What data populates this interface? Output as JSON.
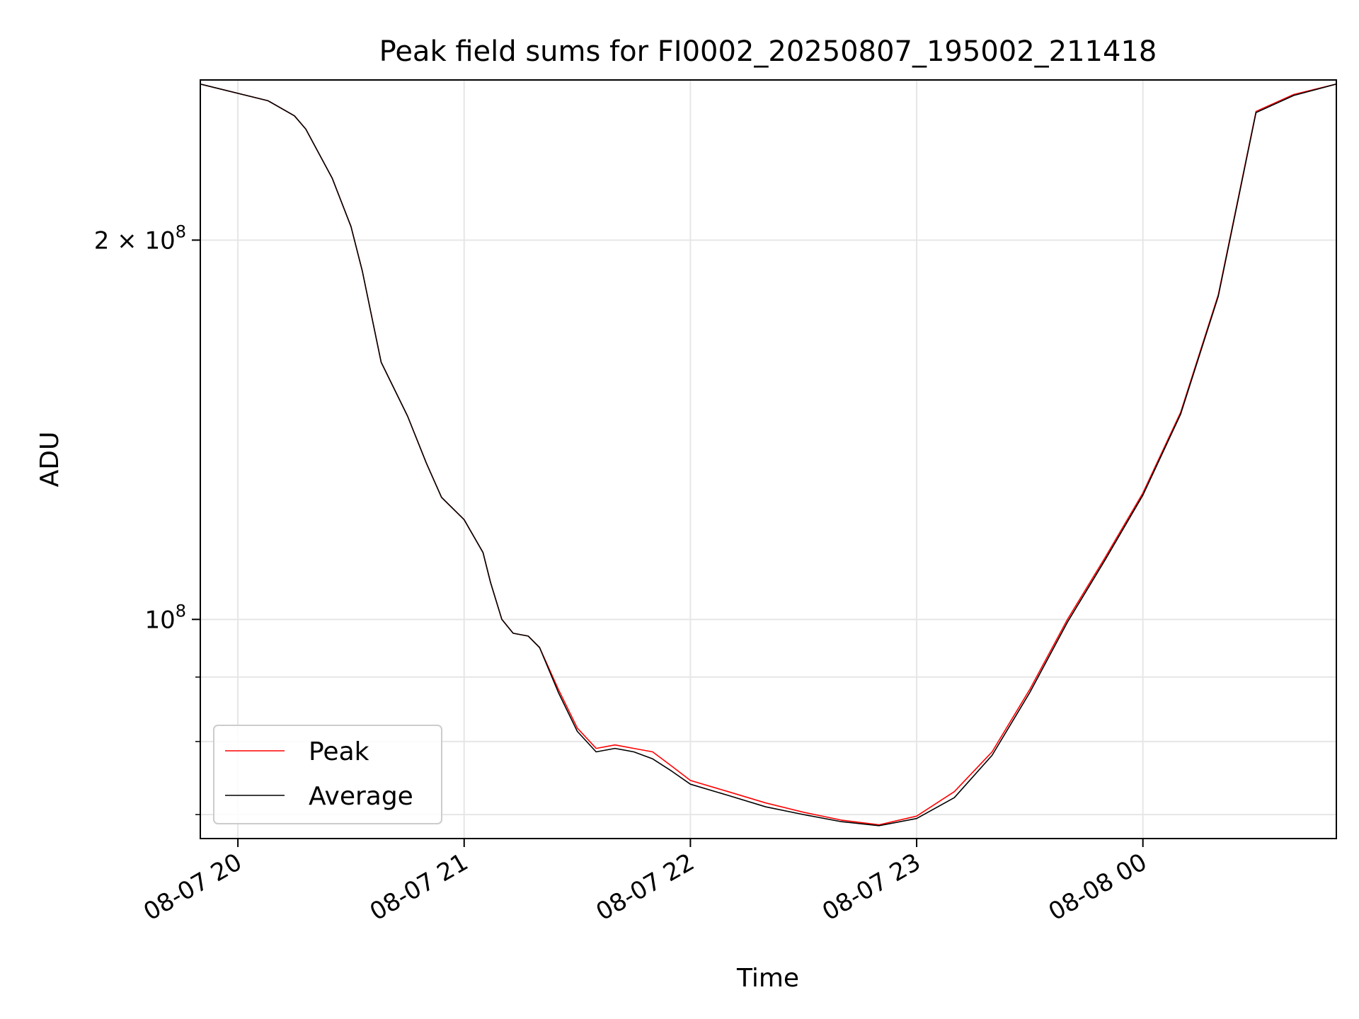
{
  "chart_data": {
    "type": "line",
    "title": "Peak field sums for FI0002_20250807_195002_211418",
    "xlabel": "Time",
    "ylabel": "ADU",
    "y_scale": "log",
    "ylim": [
      67000000,
      268000000
    ],
    "x_time_range": [
      "2025-08-07T19:50:02",
      "2025-08-08T00:51:18"
    ],
    "x_ticks": [
      {
        "time": "2025-08-07T20:00",
        "label": "08-07 20"
      },
      {
        "time": "2025-08-07T21:00",
        "label": "08-07 21"
      },
      {
        "time": "2025-08-07T22:00",
        "label": "08-07 22"
      },
      {
        "time": "2025-08-07T23:00",
        "label": "08-07 23"
      },
      {
        "time": "2025-08-08T00:00",
        "label": "08-08 00"
      }
    ],
    "y_major_ticks": [
      {
        "value": 100000000,
        "base": "10",
        "exp": "8"
      },
      {
        "value": 200000000,
        "mant": "2",
        "base": "10",
        "exp": "8"
      }
    ],
    "y_minor_ticks": [
      70000000,
      80000000,
      90000000
    ],
    "grid": true,
    "legend_position": "lower-left",
    "series": [
      {
        "name": "Peak",
        "color": "#ff0000",
        "x": [
          "2025-08-07T19:50:02",
          "2025-08-07T20:08:00",
          "2025-08-07T20:15:00",
          "2025-08-07T20:18:00",
          "2025-08-07T20:25:00",
          "2025-08-07T20:30:00",
          "2025-08-07T20:33:00",
          "2025-08-07T20:38:00",
          "2025-08-07T20:45:00",
          "2025-08-07T20:50:00",
          "2025-08-07T20:54:00",
          "2025-08-07T21:00:00",
          "2025-08-07T21:05:00",
          "2025-08-07T21:07:00",
          "2025-08-07T21:10:00",
          "2025-08-07T21:13:00",
          "2025-08-07T21:17:00",
          "2025-08-07T21:20:00",
          "2025-08-07T21:25:00",
          "2025-08-07T21:30:00",
          "2025-08-07T21:35:00",
          "2025-08-07T21:40:00",
          "2025-08-07T21:45:00",
          "2025-08-07T21:50:00",
          "2025-08-07T21:55:00",
          "2025-08-07T22:00:00",
          "2025-08-07T22:10:00",
          "2025-08-07T22:20:00",
          "2025-08-07T22:30:00",
          "2025-08-07T22:40:00",
          "2025-08-07T22:50:00",
          "2025-08-07T23:00:00",
          "2025-08-07T23:10:00",
          "2025-08-07T23:20:00",
          "2025-08-07T23:30:00",
          "2025-08-07T23:40:00",
          "2025-08-07T23:50:00",
          "2025-08-08T00:00:00",
          "2025-08-08T00:10:00",
          "2025-08-08T00:20:00",
          "2025-08-08T00:25:00",
          "2025-08-08T00:30:00",
          "2025-08-08T00:40:00",
          "2025-08-08T00:51:18"
        ],
        "values": [
          266000000,
          258000000,
          251000000,
          245000000,
          224000000,
          205000000,
          189000000,
          160000000,
          145000000,
          133000000,
          125000000,
          120000000,
          113000000,
          107000000,
          100000000,
          97500000,
          97000000,
          95000000,
          88000000,
          82000000,
          79000000,
          79500000,
          79000000,
          78500000,
          76500000,
          74500000,
          73000000,
          71500000,
          70300000,
          69300000,
          68700000,
          69800000,
          73000000,
          78500000,
          88000000,
          100000000,
          112000000,
          126000000,
          146000000,
          181000000,
          214000000,
          253000000,
          261000000,
          266000000
        ]
      },
      {
        "name": "Average",
        "color": "#000000",
        "x": [
          "2025-08-07T19:50:02",
          "2025-08-07T20:08:00",
          "2025-08-07T20:15:00",
          "2025-08-07T20:18:00",
          "2025-08-07T20:25:00",
          "2025-08-07T20:30:00",
          "2025-08-07T20:33:00",
          "2025-08-07T20:38:00",
          "2025-08-07T20:45:00",
          "2025-08-07T20:50:00",
          "2025-08-07T20:54:00",
          "2025-08-07T21:00:00",
          "2025-08-07T21:05:00",
          "2025-08-07T21:07:00",
          "2025-08-07T21:10:00",
          "2025-08-07T21:13:00",
          "2025-08-07T21:17:00",
          "2025-08-07T21:20:00",
          "2025-08-07T21:25:00",
          "2025-08-07T21:30:00",
          "2025-08-07T21:35:00",
          "2025-08-07T21:40:00",
          "2025-08-07T21:45:00",
          "2025-08-07T21:50:00",
          "2025-08-07T21:55:00",
          "2025-08-07T22:00:00",
          "2025-08-07T22:10:00",
          "2025-08-07T22:20:00",
          "2025-08-07T22:30:00",
          "2025-08-07T22:40:00",
          "2025-08-07T22:50:00",
          "2025-08-07T23:00:00",
          "2025-08-07T23:10:00",
          "2025-08-07T23:20:00",
          "2025-08-07T23:30:00",
          "2025-08-07T23:40:00",
          "2025-08-07T23:50:00",
          "2025-08-08T00:00:00",
          "2025-08-08T00:10:00",
          "2025-08-08T00:20:00",
          "2025-08-08T00:25:00",
          "2025-08-08T00:30:00",
          "2025-08-08T00:40:00",
          "2025-08-08T00:51:18"
        ],
        "values": [
          266000000,
          258000000,
          251000000,
          245000000,
          224000000,
          205000000,
          189000000,
          160000000,
          145000000,
          133000000,
          125000000,
          120000000,
          113000000,
          107000000,
          100000000,
          97500000,
          97000000,
          95000000,
          87500000,
          81500000,
          78500000,
          79000000,
          78500000,
          77500000,
          75800000,
          74000000,
          72500000,
          71000000,
          70000000,
          69100000,
          68600000,
          69500000,
          72200000,
          78000000,
          87500000,
          99500000,
          111500000,
          125500000,
          145500000,
          180500000,
          213500000,
          252500000,
          260500000,
          266000000
        ]
      }
    ]
  }
}
